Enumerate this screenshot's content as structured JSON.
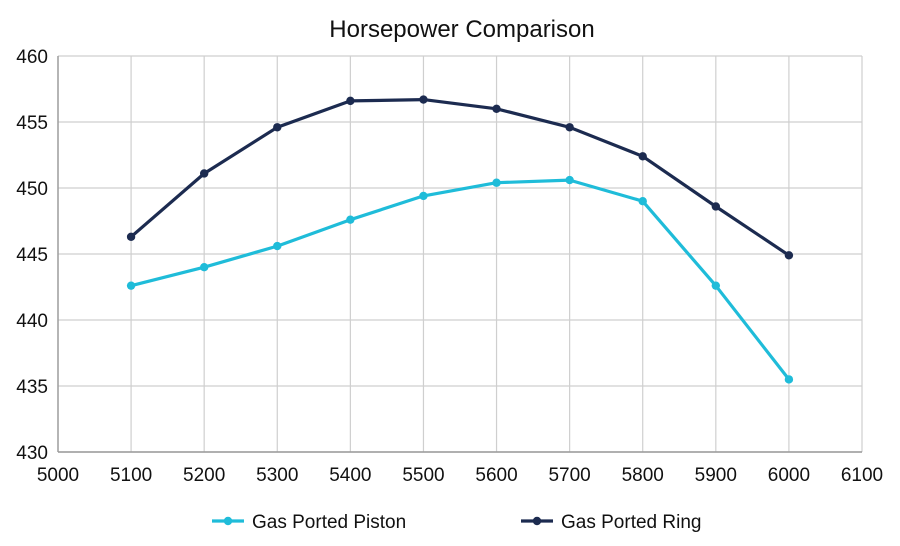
{
  "chart_data": {
    "type": "line",
    "title": "Horsepower Comparison",
    "xlabel": "",
    "ylabel": "",
    "xlim": [
      5000,
      6100
    ],
    "ylim": [
      430,
      460
    ],
    "x_ticks": [
      5000,
      5100,
      5200,
      5300,
      5400,
      5500,
      5600,
      5700,
      5800,
      5900,
      6000,
      6100
    ],
    "y_ticks": [
      430,
      435,
      440,
      445,
      450,
      455,
      460
    ],
    "grid": true,
    "legend_position": "bottom",
    "x": [
      5100,
      5200,
      5300,
      5400,
      5500,
      5600,
      5700,
      5800,
      5900,
      6000
    ],
    "series": [
      {
        "name": "Gas Ported Piston",
        "color": "#1fbcd9",
        "values": [
          442.6,
          444.0,
          445.6,
          447.6,
          449.4,
          450.4,
          450.6,
          449.0,
          442.6,
          435.5
        ]
      },
      {
        "name": "Gas Ported Ring",
        "color": "#1c2b50",
        "values": [
          446.3,
          451.1,
          454.6,
          456.6,
          456.7,
          456.0,
          454.6,
          452.4,
          448.6,
          444.9
        ]
      }
    ]
  }
}
